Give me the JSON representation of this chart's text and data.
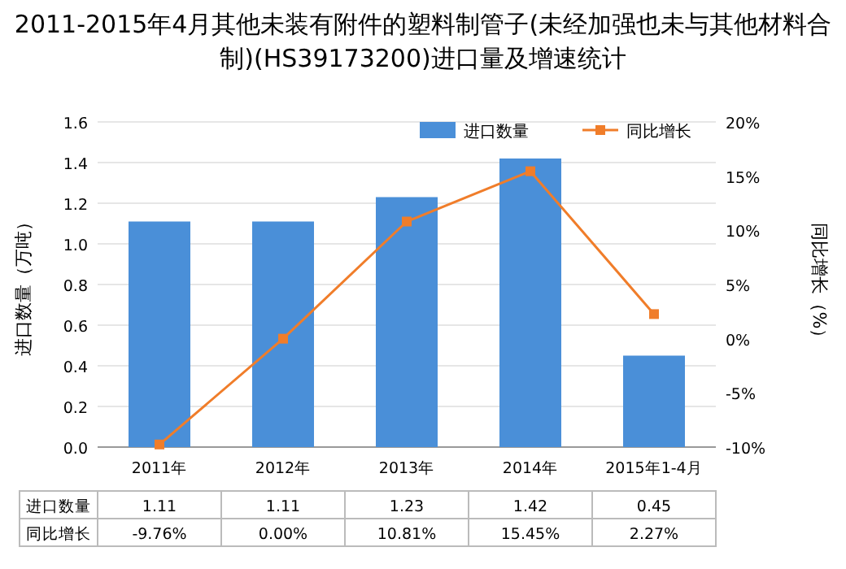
{
  "chart_data": {
    "type": "bar",
    "title": "2011-2015年4月其他未装有附件的塑料制管子(未经加强也未与其他材料合制)(HS39173200)进口量及增速统计",
    "ylabel": "进口数量（万吨）",
    "y2label": "同比增长（%）",
    "categories": [
      "2011年",
      "2012年",
      "2013年",
      "2014年",
      "2015年1-4月"
    ],
    "series": [
      {
        "name": "进口数量",
        "color": "#4a8fd8",
        "values": [
          1.11,
          1.11,
          1.23,
          1.42,
          0.45
        ],
        "value_labels": [
          "1.11",
          "1.11",
          "1.23",
          "1.42",
          "0.45"
        ]
      },
      {
        "name": "同比增长",
        "type": "line",
        "axis": "y2",
        "color": "#f07d2a",
        "marker": "square",
        "values": [
          -9.76,
          0.0,
          10.81,
          15.45,
          2.27
        ],
        "value_labels": [
          "-9.76%",
          "0.00%",
          "10.81%",
          "15.45%",
          "2.27%"
        ]
      }
    ],
    "ylim": [
      0,
      1.6
    ],
    "yticks": [
      {
        "value": 0,
        "label": "0.0"
      },
      0.2,
      0.4,
      0.6,
      0.8,
      {
        "value": 1,
        "label": "1.0"
      },
      1.2,
      1.4,
      1.6
    ],
    "y2lim": [
      -10,
      20
    ],
    "y2ticks": [
      {
        "value": -10,
        "label": "-10%"
      },
      {
        "value": -5,
        "label": "-5%"
      },
      {
        "value": 0,
        "label": "0%"
      },
      {
        "value": 5,
        "label": "5%"
      },
      {
        "value": 10,
        "label": "10%"
      },
      {
        "value": 15,
        "label": "15%"
      },
      {
        "value": 20,
        "label": "20%"
      }
    ],
    "grid": "y",
    "legend": "top right"
  }
}
